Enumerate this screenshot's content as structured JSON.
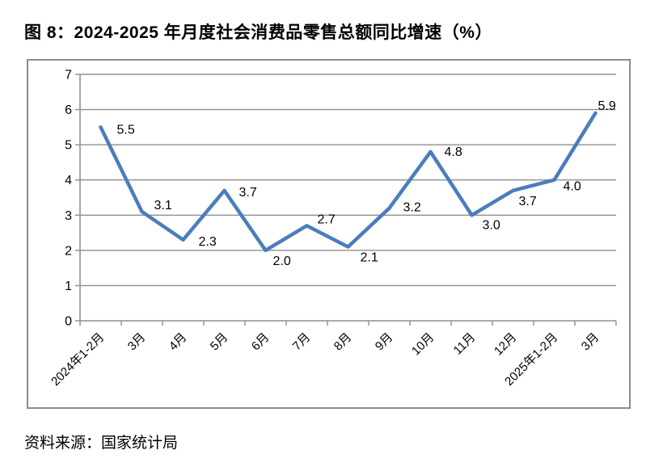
{
  "title": "图 8：2024-2025 年月度社会消费品零售总额同比增速（%）",
  "source": "资料来源：国家统计局",
  "chart_data": {
    "type": "line",
    "title": "图 8：2024-2025 年月度社会消费品零售总额同比增速（%）",
    "categories": [
      "2024年1-2月",
      "3月",
      "4月",
      "5月",
      "6月",
      "7月",
      "8月",
      "9月",
      "10月",
      "11月",
      "12月",
      "2025年1-2月",
      "3月"
    ],
    "values": [
      5.5,
      3.1,
      2.3,
      3.7,
      2.0,
      2.7,
      2.1,
      3.2,
      4.8,
      3.0,
      3.7,
      4.0,
      5.9
    ],
    "point_labels": [
      "5.5",
      "3.1",
      "2.3",
      "3.7",
      "2.0",
      "2.7",
      "2.1",
      "3.2",
      "4.8",
      "3.0",
      "3.7",
      "4.0",
      "5.9"
    ],
    "xlabel": "",
    "ylabel": "",
    "ylim": [
      0,
      7
    ],
    "ytick_step": 1,
    "grid": true,
    "legend": "none",
    "line_color": "#4a7ebb",
    "grid_color": "#8f8f8f",
    "axis_color": "#8f8f8f",
    "text_color": "#000000"
  }
}
